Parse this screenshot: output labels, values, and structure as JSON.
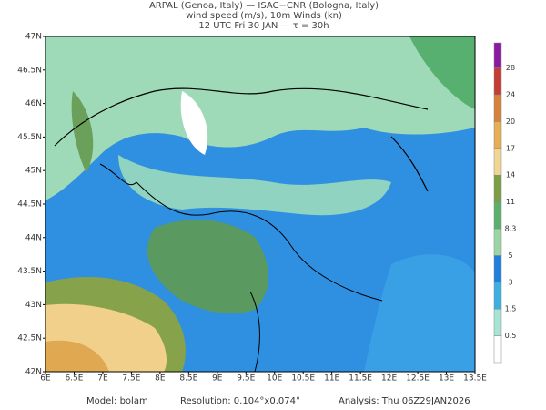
{
  "header": {
    "lines": [
      "ARPAL (Genoa, Italy)  —  ISAC−CNR (Bologna, Italy)",
      "wind speed (m/s), 10m Winds (kn)",
      "12 UTC Fri 30 JAN  —  τ = 30h"
    ]
  },
  "map": {
    "lon_labels": [
      "6E",
      "6.5E",
      "7E",
      "7.5E",
      "8E",
      "8.5E",
      "9E",
      "9.5E",
      "10E",
      "10.5E",
      "11E",
      "11.5E",
      "12E",
      "12.5E",
      "13E",
      "13.5E"
    ],
    "lat_labels": [
      "47N",
      "46.5N",
      "46N",
      "45.5N",
      "45N",
      "44.5N",
      "44N",
      "43.5N",
      "43N",
      "42.5N",
      "42N"
    ]
  },
  "colorbar": {
    "levels": [
      0.5,
      1.5,
      3,
      5,
      8.3,
      11,
      14,
      17,
      20,
      24,
      28
    ]
  },
  "footer": {
    "model": "Model: bolam",
    "resolution": "Resolution: 0.104°x0.074°",
    "analysis": "Analysis: Thu 06Z29JAN2026"
  }
}
